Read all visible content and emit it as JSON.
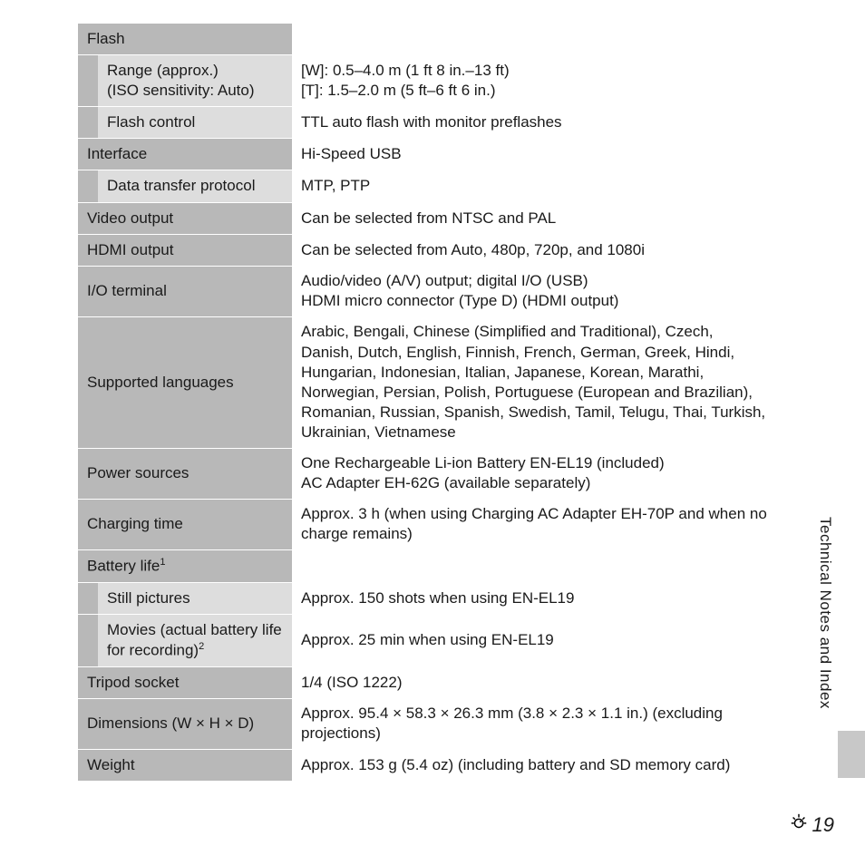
{
  "rows": [
    {
      "type": "header",
      "label": "Flash",
      "value": ""
    },
    {
      "type": "sub",
      "label": "Range (approx.)\n(ISO sensitivity: Auto)",
      "value": "[W]: 0.5–4.0 m (1 ft 8 in.–13 ft)\n[T]: 1.5–2.0 m (5 ft–6 ft 6 in.)"
    },
    {
      "type": "sub",
      "label": "Flash control",
      "value": "TTL auto flash with monitor preflashes"
    },
    {
      "type": "main",
      "label": "Interface",
      "value": "Hi-Speed USB"
    },
    {
      "type": "sub",
      "label": "Data transfer protocol",
      "value": "MTP, PTP"
    },
    {
      "type": "main",
      "label": "Video output",
      "value": "Can be selected from NTSC and PAL"
    },
    {
      "type": "main",
      "label": "HDMI output",
      "value": "Can be selected from Auto, 480p, 720p, and 1080i"
    },
    {
      "type": "main",
      "label": "I/O terminal",
      "value": "Audio/video (A/V) output; digital I/O (USB)\nHDMI micro connector (Type D) (HDMI output)"
    },
    {
      "type": "main",
      "label": "Supported languages",
      "value": "Arabic, Bengali, Chinese (Simplified and Traditional), Czech, Danish, Dutch, English, Finnish, French, German, Greek, Hindi, Hungarian, Indonesian, Italian, Japanese, Korean, Marathi, Norwegian, Persian, Polish, Portuguese (European and Brazilian), Romanian, Russian, Spanish, Swedish, Tamil, Telugu, Thai, Turkish, Ukrainian, Vietnamese"
    },
    {
      "type": "main",
      "label": "Power sources",
      "value": "One Rechargeable Li-ion Battery EN-EL19 (included)\nAC Adapter EH-62G (available separately)"
    },
    {
      "type": "main",
      "label": "Charging time",
      "value": "Approx. 3 h (when using Charging AC Adapter EH-70P and when no charge remains)"
    },
    {
      "type": "header",
      "label": "Battery life",
      "sup": "1",
      "value": ""
    },
    {
      "type": "sub",
      "label": "Still pictures",
      "value": "Approx. 150 shots when using EN-EL19"
    },
    {
      "type": "sub",
      "label": "Movies (actual battery life for recording)",
      "sup": "2",
      "value": "Approx. 25 min when using EN-EL19"
    },
    {
      "type": "main",
      "label": "Tripod socket",
      "value": "1/4 (ISO 1222)"
    },
    {
      "type": "main",
      "label": "Dimensions (W × H × D)",
      "value": "Approx. 95.4 × 58.3 × 26.3 mm (3.8 × 2.3 × 1.1 in.) (excluding projections)"
    },
    {
      "type": "main",
      "label": "Weight",
      "value": "Approx. 153 g (5.4 oz) (including battery and SD memory card)"
    }
  ],
  "side_label": "Technical Notes and Index",
  "page_number": "19"
}
